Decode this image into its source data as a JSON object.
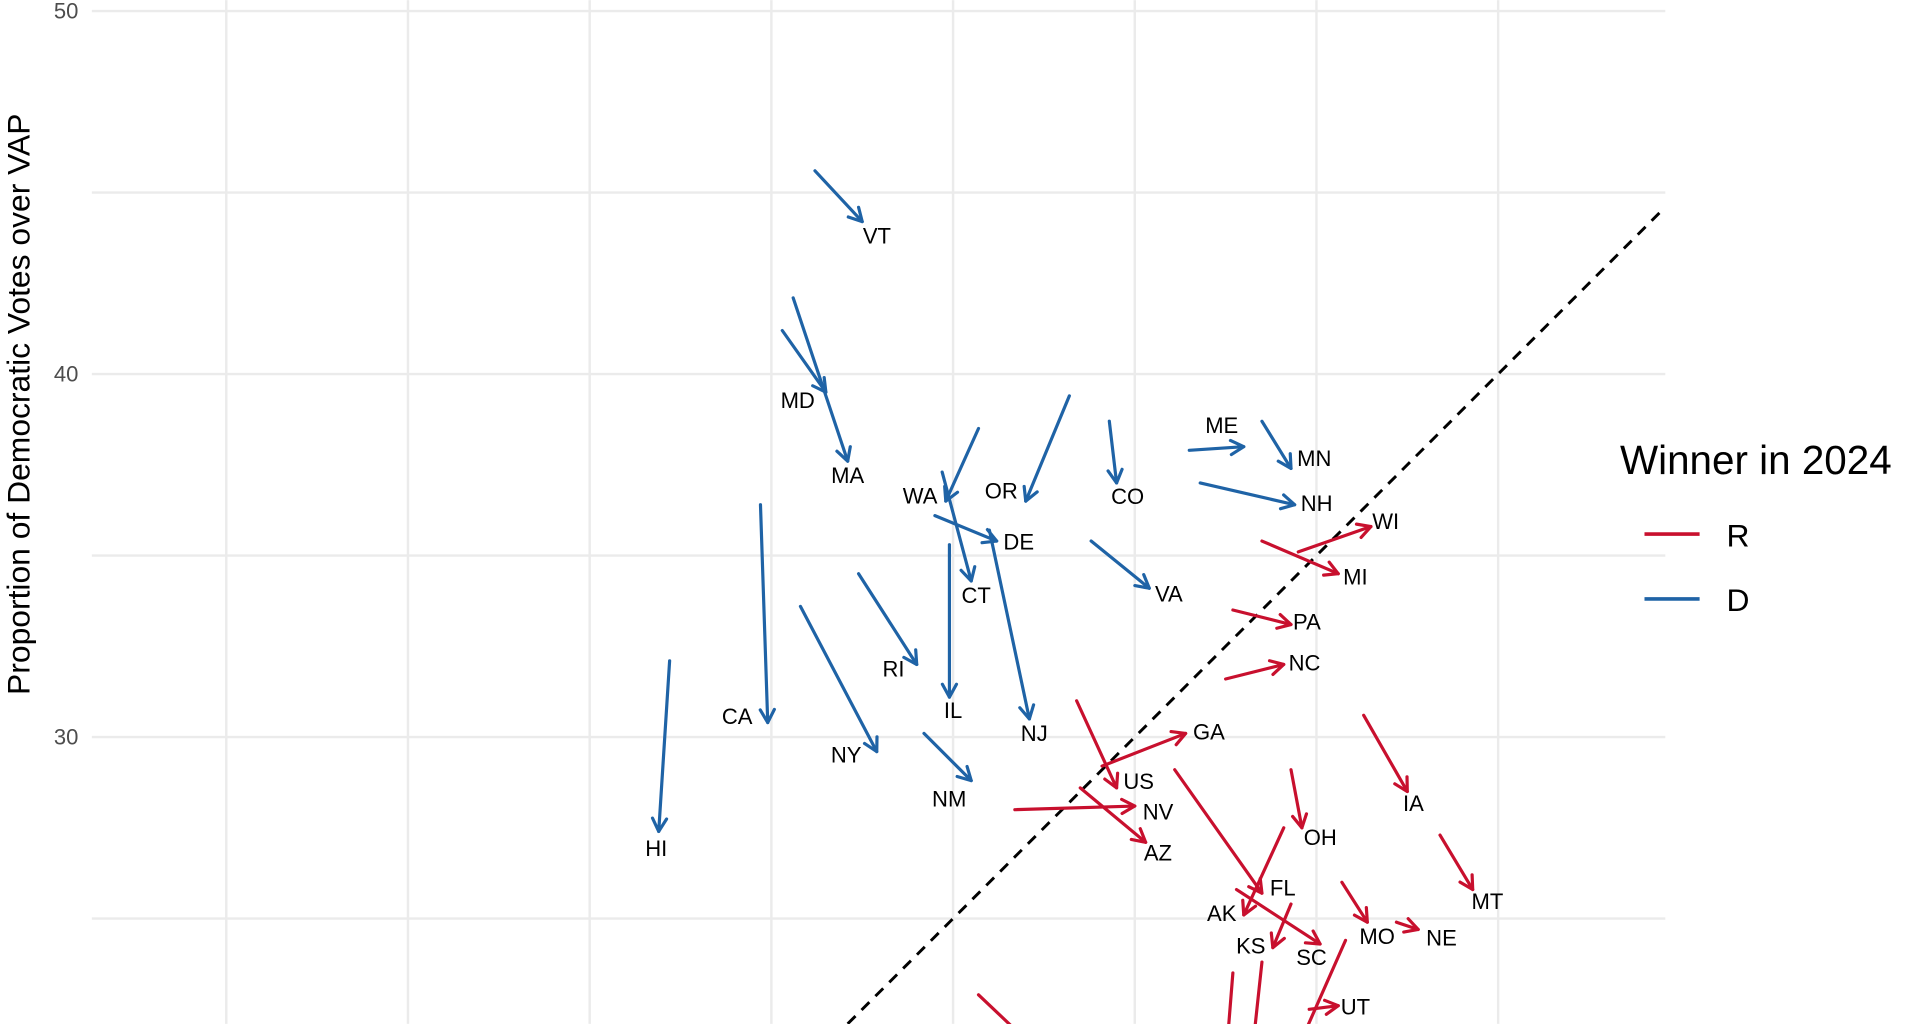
{
  "chart_data": {
    "type": "arrow-scatter",
    "title": "",
    "xlabel": "",
    "ylabel": "Proportion of Democratic Votes over VAP",
    "xlim": [
      1.3,
      44.6
    ],
    "ylim": [
      22.1,
      50.3
    ],
    "x_gridlines": [
      5,
      10,
      15,
      20,
      25,
      30,
      35,
      40
    ],
    "y_gridlines": [
      25,
      30,
      35,
      40,
      45,
      50
    ],
    "y_tick_labels": [
      "50",
      "40",
      "30"
    ],
    "y_tick_values": [
      50,
      40,
      30
    ],
    "grid": true,
    "reference_line": {
      "type": "y = x",
      "style": "dashed",
      "color": "#000000"
    },
    "legend": {
      "title": "Winner in 2024",
      "placement": "right",
      "entries": [
        {
          "key": "R",
          "label": "R",
          "color": "#C8102E"
        },
        {
          "key": "D",
          "label": "D",
          "color": "#1F63A6"
        }
      ]
    },
    "arrows": [
      {
        "label": "VT",
        "winner": "D",
        "from": [
          21.2,
          45.6
        ],
        "to": [
          22.5,
          44.2
        ]
      },
      {
        "label": "MD",
        "winner": "D",
        "from": [
          20.3,
          41.2
        ],
        "to": [
          21.5,
          39.5
        ]
      },
      {
        "label": "MA",
        "winner": "D",
        "from": [
          20.6,
          42.1
        ],
        "to": [
          22.1,
          37.6
        ]
      },
      {
        "label": "WA",
        "winner": "D",
        "from": [
          25.7,
          38.5
        ],
        "to": [
          24.8,
          36.5
        ]
      },
      {
        "label": "OR",
        "winner": "D",
        "from": [
          28.2,
          39.4
        ],
        "to": [
          27.0,
          36.5
        ]
      },
      {
        "label": "CT",
        "winner": "D",
        "from": [
          24.7,
          37.3
        ],
        "to": [
          25.5,
          34.3
        ]
      },
      {
        "label": "DE",
        "winner": "D",
        "from": [
          24.5,
          36.1
        ],
        "to": [
          26.2,
          35.4
        ]
      },
      {
        "label": "NJ",
        "winner": "D",
        "from": [
          26.0,
          35.7
        ],
        "to": [
          27.1,
          30.5
        ]
      },
      {
        "label": "IL",
        "winner": "D",
        "from": [
          24.9,
          35.3
        ],
        "to": [
          24.9,
          31.1
        ]
      },
      {
        "label": "RI",
        "winner": "D",
        "from": [
          22.4,
          34.5
        ],
        "to": [
          24.0,
          32.0
        ]
      },
      {
        "label": "CA",
        "winner": "D",
        "from": [
          19.7,
          36.4
        ],
        "to": [
          19.9,
          30.4
        ]
      },
      {
        "label": "NY",
        "winner": "D",
        "from": [
          20.8,
          33.6
        ],
        "to": [
          22.9,
          29.6
        ]
      },
      {
        "label": "NM",
        "winner": "D",
        "from": [
          24.2,
          30.1
        ],
        "to": [
          25.5,
          28.8
        ]
      },
      {
        "label": "HI",
        "winner": "D",
        "from": [
          17.2,
          32.1
        ],
        "to": [
          16.9,
          27.4
        ]
      },
      {
        "label": "CO",
        "winner": "D",
        "from": [
          29.3,
          38.7
        ],
        "to": [
          29.5,
          37.0
        ]
      },
      {
        "label": "ME",
        "winner": "D",
        "from": [
          31.5,
          37.9
        ],
        "to": [
          33.0,
          38.0
        ]
      },
      {
        "label": "MN",
        "winner": "D",
        "from": [
          33.5,
          38.7
        ],
        "to": [
          34.3,
          37.4
        ]
      },
      {
        "label": "NH",
        "winner": "D",
        "from": [
          31.8,
          37.0
        ],
        "to": [
          34.4,
          36.4
        ]
      },
      {
        "label": "VA",
        "winner": "D",
        "from": [
          28.8,
          35.4
        ],
        "to": [
          30.4,
          34.1
        ]
      },
      {
        "label": "WI",
        "winner": "R",
        "from": [
          34.5,
          35.1
        ],
        "to": [
          36.5,
          35.8
        ]
      },
      {
        "label": "MI",
        "winner": "R",
        "from": [
          33.5,
          35.4
        ],
        "to": [
          35.6,
          34.5
        ]
      },
      {
        "label": "PA",
        "winner": "R",
        "from": [
          32.7,
          33.5
        ],
        "to": [
          34.3,
          33.1
        ]
      },
      {
        "label": "NC",
        "winner": "R",
        "from": [
          32.5,
          31.6
        ],
        "to": [
          34.1,
          32.0
        ]
      },
      {
        "label": "GA",
        "winner": "R",
        "from": [
          29.1,
          29.2
        ],
        "to": [
          31.4,
          30.1
        ]
      },
      {
        "label": "US",
        "winner": "R",
        "from": [
          28.4,
          31.0
        ],
        "to": [
          29.5,
          28.6
        ]
      },
      {
        "label": "NV",
        "winner": "R",
        "from": [
          26.7,
          28.0
        ],
        "to": [
          30.0,
          28.1
        ]
      },
      {
        "label": "AZ",
        "winner": "R",
        "from": [
          28.5,
          28.6
        ],
        "to": [
          30.3,
          27.1
        ]
      },
      {
        "label": "IA",
        "winner": "R",
        "from": [
          36.3,
          30.6
        ],
        "to": [
          37.5,
          28.5
        ]
      },
      {
        "label": "OH",
        "winner": "R",
        "from": [
          34.3,
          29.1
        ],
        "to": [
          34.6,
          27.5
        ]
      },
      {
        "label": "MT",
        "winner": "R",
        "from": [
          38.4,
          27.3
        ],
        "to": [
          39.3,
          25.8
        ]
      },
      {
        "label": "FL",
        "winner": "R",
        "from": [
          31.1,
          29.1
        ],
        "to": [
          33.5,
          25.7
        ]
      },
      {
        "label": "AK",
        "winner": "R",
        "from": [
          34.1,
          27.5
        ],
        "to": [
          33.0,
          25.1
        ]
      },
      {
        "label": "KS",
        "winner": "R",
        "from": [
          34.3,
          25.4
        ],
        "to": [
          33.8,
          24.2
        ]
      },
      {
        "label": "SC",
        "winner": "R",
        "from": [
          32.8,
          25.8
        ],
        "to": [
          35.1,
          24.3
        ]
      },
      {
        "label": "MO",
        "winner": "R",
        "from": [
          35.7,
          26.0
        ],
        "to": [
          36.4,
          24.9
        ]
      },
      {
        "label": "NE",
        "winner": "R",
        "from": [
          37.2,
          24.9
        ],
        "to": [
          37.8,
          24.7
        ]
      },
      {
        "label": "UT",
        "winner": "R",
        "from": [
          34.8,
          22.5
        ],
        "to": [
          35.6,
          22.6
        ]
      },
      {
        "label": "",
        "winner": "R",
        "from": [
          32.7,
          23.5
        ],
        "to": [
          32.5,
          21.0
        ]
      },
      {
        "label": "",
        "winner": "R",
        "from": [
          33.5,
          23.8
        ],
        "to": [
          33.2,
          21.0
        ]
      },
      {
        "label": "",
        "winner": "R",
        "from": [
          35.8,
          24.4
        ],
        "to": [
          34.3,
          21.0
        ]
      },
      {
        "label": "",
        "winner": "R",
        "from": [
          25.7,
          22.9
        ],
        "to": [
          27.7,
          21.0
        ]
      }
    ]
  }
}
